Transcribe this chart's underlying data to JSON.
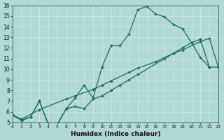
{
  "xlabel": "Humidex (Indice chaleur)",
  "bg_color": "#b0d8d5",
  "line_color": "#1a6b5a",
  "xlim": [
    0,
    23
  ],
  "ylim": [
    5,
    16
  ],
  "xticks": [
    0,
    1,
    2,
    3,
    4,
    5,
    6,
    7,
    8,
    9,
    10,
    11,
    12,
    13,
    14,
    15,
    16,
    17,
    18,
    19,
    20,
    21,
    22,
    23
  ],
  "yticks": [
    5,
    6,
    7,
    8,
    9,
    10,
    11,
    12,
    13,
    14,
    15,
    16
  ],
  "line1_x": [
    0,
    1,
    2,
    3,
    4,
    5,
    6,
    7,
    8,
    9,
    10,
    11,
    12,
    13,
    14,
    15,
    16,
    17,
    18,
    19,
    20,
    21,
    22
  ],
  "line1_y": [
    5.7,
    5.2,
    5.5,
    7.0,
    4.8,
    4.8,
    6.3,
    7.3,
    8.5,
    7.3,
    10.2,
    12.2,
    12.2,
    13.3,
    15.6,
    15.9,
    15.2,
    14.9,
    14.2,
    13.8,
    12.5,
    11.1,
    10.2
  ],
  "line2_x": [
    0,
    1,
    3,
    6,
    7,
    9,
    10,
    11,
    13,
    14,
    16,
    18,
    19,
    21,
    22,
    23
  ],
  "line2_y": [
    5.7,
    5.3,
    6.2,
    7.2,
    7.5,
    8.1,
    8.5,
    8.9,
    9.7,
    10.1,
    10.7,
    11.5,
    11.8,
    12.6,
    12.9,
    10.2
  ],
  "line3_x": [
    0,
    1,
    2,
    3,
    4,
    5,
    6,
    7,
    8,
    9,
    10,
    11,
    12,
    13,
    14,
    17,
    18,
    19,
    20,
    21,
    22,
    23
  ],
  "line3_y": [
    5.7,
    5.2,
    5.5,
    7.0,
    4.8,
    4.8,
    6.3,
    6.5,
    6.3,
    7.2,
    7.5,
    8.0,
    8.5,
    9.0,
    9.5,
    11.0,
    11.5,
    12.0,
    12.5,
    12.8,
    10.2,
    10.2
  ]
}
